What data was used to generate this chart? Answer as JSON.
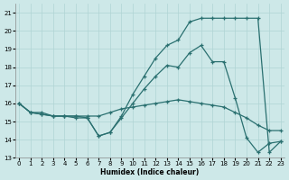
{
  "xlabel": "Humidex (Indice chaleur)",
  "bg_color": "#cde8e8",
  "grid_color": "#b0d4d4",
  "line_color": "#2a7070",
  "xlim": [
    -0.3,
    23.3
  ],
  "ylim": [
    13,
    21.5
  ],
  "yticks": [
    13,
    14,
    15,
    16,
    17,
    18,
    19,
    20,
    21
  ],
  "xticks": [
    0,
    1,
    2,
    3,
    4,
    5,
    6,
    7,
    8,
    9,
    10,
    11,
    12,
    13,
    14,
    15,
    16,
    17,
    18,
    19,
    20,
    21,
    22,
    23
  ],
  "line1_x": [
    0,
    1,
    2,
    3,
    4,
    5,
    6,
    7,
    8,
    9,
    10,
    11,
    12,
    13,
    14,
    15,
    16,
    17,
    18,
    19,
    20,
    21,
    22,
    23
  ],
  "line1_y": [
    16,
    15.5,
    15.5,
    15.3,
    15.3,
    15.3,
    15.3,
    15.3,
    15.5,
    15.7,
    15.8,
    15.9,
    16.0,
    16.1,
    16.2,
    16.1,
    16.0,
    15.9,
    15.8,
    15.5,
    15.2,
    14.8,
    14.5,
    14.5
  ],
  "line2_x": [
    0,
    1,
    2,
    3,
    4,
    5,
    6,
    7,
    8,
    9,
    10,
    11,
    12,
    13,
    14,
    15,
    16,
    17,
    18,
    19,
    20,
    21,
    22,
    23
  ],
  "line2_y": [
    16,
    15.5,
    15.4,
    15.3,
    15.3,
    15.3,
    15.2,
    14.2,
    14.4,
    15.2,
    16.0,
    16.8,
    17.5,
    18.1,
    18.0,
    18.8,
    19.2,
    18.3,
    18.3,
    16.3,
    14.1,
    13.3,
    13.8,
    13.9
  ],
  "line3_x": [
    0,
    1,
    2,
    3,
    4,
    5,
    6,
    7,
    8,
    9,
    10,
    11,
    12,
    13,
    14,
    15,
    16,
    17,
    18,
    19,
    20,
    21,
    22,
    23
  ],
  "line3_y": [
    16,
    15.5,
    15.4,
    15.3,
    15.3,
    15.2,
    15.2,
    14.2,
    14.4,
    15.3,
    16.5,
    17.5,
    18.5,
    19.2,
    19.5,
    20.5,
    20.7,
    20.7,
    20.7,
    20.7,
    20.7,
    20.7,
    13.3,
    13.9
  ]
}
